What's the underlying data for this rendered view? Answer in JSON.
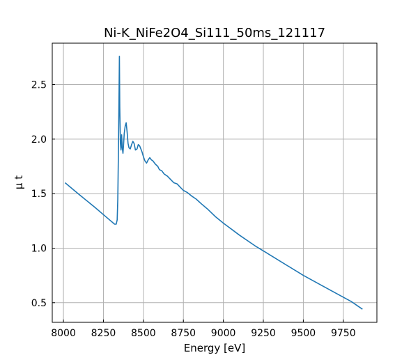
{
  "chart_data": {
    "type": "line",
    "title": "Ni-K_NiFe2O4_Si111_50ms_121117",
    "xlabel": "Energy [eV]",
    "ylabel": "μ t",
    "xlim": [
      7930,
      9960
    ],
    "ylim": [
      0.32,
      2.88
    ],
    "xticks": [
      8000,
      8250,
      8500,
      8750,
      9000,
      9250,
      9500,
      9750
    ],
    "xtick_labels": [
      "8000",
      "8250",
      "8500",
      "8750",
      "9000",
      "9250",
      "9500",
      "9750"
    ],
    "yticks": [
      0.5,
      1.0,
      1.5,
      2.0,
      2.5
    ],
    "ytick_labels": [
      "0.5",
      "1.0",
      "1.5",
      "2.0",
      "2.5"
    ],
    "grid": true,
    "line_color": "#1f77b4",
    "series": [
      {
        "x": [
          8010,
          8100,
          8200,
          8280,
          8320,
          8330,
          8336,
          8340,
          8344,
          8348,
          8350,
          8352,
          8356,
          8360,
          8364,
          8368,
          8372,
          8376,
          8380,
          8386,
          8392,
          8398,
          8404,
          8410,
          8418,
          8426,
          8434,
          8442,
          8450,
          8460,
          8468,
          8476,
          8484,
          8492,
          8500,
          8510,
          8520,
          8530,
          8540,
          8550,
          8560,
          8575,
          8590,
          8600,
          8615,
          8630,
          8650,
          8670,
          8690,
          8710,
          8730,
          8750,
          8775,
          8800,
          8830,
          8860,
          8900,
          8950,
          9000,
          9100,
          9200,
          9300,
          9400,
          9500,
          9600,
          9700,
          9800,
          9870
        ],
        "y": [
          1.6,
          1.49,
          1.37,
          1.27,
          1.22,
          1.22,
          1.26,
          1.45,
          1.9,
          2.5,
          2.76,
          2.3,
          1.96,
          1.9,
          2.04,
          1.92,
          1.87,
          1.95,
          2.05,
          2.12,
          2.15,
          2.07,
          1.96,
          1.92,
          1.91,
          1.95,
          1.98,
          1.96,
          1.9,
          1.91,
          1.95,
          1.94,
          1.91,
          1.88,
          1.84,
          1.8,
          1.78,
          1.81,
          1.83,
          1.81,
          1.8,
          1.77,
          1.75,
          1.72,
          1.71,
          1.68,
          1.66,
          1.63,
          1.6,
          1.59,
          1.56,
          1.53,
          1.51,
          1.48,
          1.45,
          1.41,
          1.36,
          1.29,
          1.23,
          1.12,
          1.02,
          0.93,
          0.84,
          0.75,
          0.67,
          0.59,
          0.51,
          0.44
        ]
      }
    ]
  }
}
